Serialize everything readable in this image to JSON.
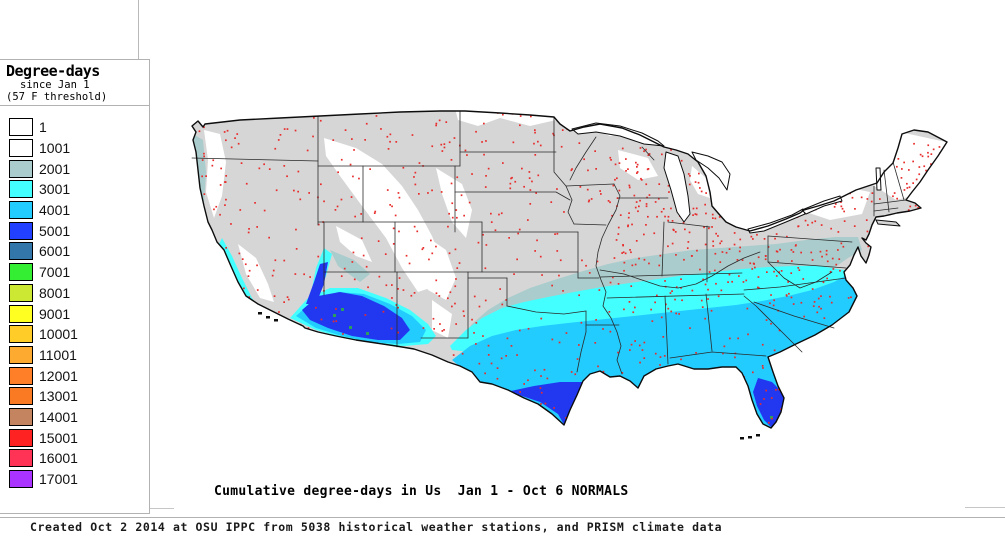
{
  "legend": {
    "title": "Degree-days",
    "subtitle1": "since Jan 1",
    "subtitle2": "(57 F threshold)",
    "entries": [
      {
        "label": "1",
        "color": "#ffffff"
      },
      {
        "label": "1001",
        "color": "#ffffff"
      },
      {
        "label": "2001",
        "color": "#aacccc"
      },
      {
        "label": "3001",
        "color": "#44ffff"
      },
      {
        "label": "4001",
        "color": "#22ccff"
      },
      {
        "label": "5001",
        "color": "#2240ff"
      },
      {
        "label": "6001",
        "color": "#3377aa"
      },
      {
        "label": "7001",
        "color": "#33ee33"
      },
      {
        "label": "8001",
        "color": "#cce832"
      },
      {
        "label": "9001",
        "color": "#ffff22"
      },
      {
        "label": "10001",
        "color": "#ffcc28"
      },
      {
        "label": "11001",
        "color": "#fcaa30"
      },
      {
        "label": "12001",
        "color": "#ff7e28"
      },
      {
        "label": "13001",
        "color": "#fa7a24"
      },
      {
        "label": "14001",
        "color": "#c3845f"
      },
      {
        "label": "15001",
        "color": "#ff2222"
      },
      {
        "label": "16001",
        "color": "#ff3355"
      },
      {
        "label": "17001",
        "color": "#aa33ff"
      }
    ]
  },
  "map": {
    "title": "Cumulative degree-days in Us  Jan 1 - Oct 6 NORMALS",
    "region_colors": {
      "base_gray": "#d6d6d6",
      "high_elevation_white": "#ffffff",
      "band_2001": "#aacccc",
      "band_3001": "#44ffff",
      "band_4001": "#22ccff",
      "band_5001": "#2238f0",
      "accent_green": "#2aa05a",
      "outline": "#0d0d0d",
      "state_border": "#2a2a2a",
      "water_white": "#ffffff"
    },
    "station_dots": {
      "color": "#e82c2c",
      "count": 1400
    }
  },
  "footer": {
    "text": "Created Oct 2 2014 at OSU IPPC from 5038 historical weather stations, and PRISM climate data"
  },
  "frame": {
    "line_color": "#b9b9b9"
  }
}
